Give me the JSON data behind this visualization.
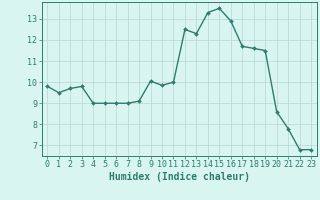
{
  "x": [
    0,
    1,
    2,
    3,
    4,
    5,
    6,
    7,
    8,
    9,
    10,
    11,
    12,
    13,
    14,
    15,
    16,
    17,
    18,
    19,
    20,
    21,
    22,
    23
  ],
  "y": [
    9.8,
    9.5,
    9.7,
    9.8,
    9.0,
    9.0,
    9.0,
    9.0,
    9.1,
    10.05,
    9.85,
    10.0,
    12.5,
    12.3,
    13.3,
    13.5,
    12.9,
    11.7,
    11.6,
    11.5,
    8.6,
    7.8,
    6.8,
    6.8
  ],
  "line_color": "#2e7d6e",
  "marker": "D",
  "marker_size": 2,
  "bg_color": "#d8f5f0",
  "grid_color": "#b8d8d4",
  "xlabel": "Humidex (Indice chaleur)",
  "xlabel_fontsize": 7,
  "yticks": [
    7,
    8,
    9,
    10,
    11,
    12,
    13
  ],
  "xticks": [
    0,
    1,
    2,
    3,
    4,
    5,
    6,
    7,
    8,
    9,
    10,
    11,
    12,
    13,
    14,
    15,
    16,
    17,
    18,
    19,
    20,
    21,
    22,
    23
  ],
  "ylim": [
    6.5,
    13.8
  ],
  "xlim": [
    -0.5,
    23.5
  ],
  "tick_fontsize": 6,
  "linewidth": 1.0,
  "axis_color": "#2e7d6e"
}
